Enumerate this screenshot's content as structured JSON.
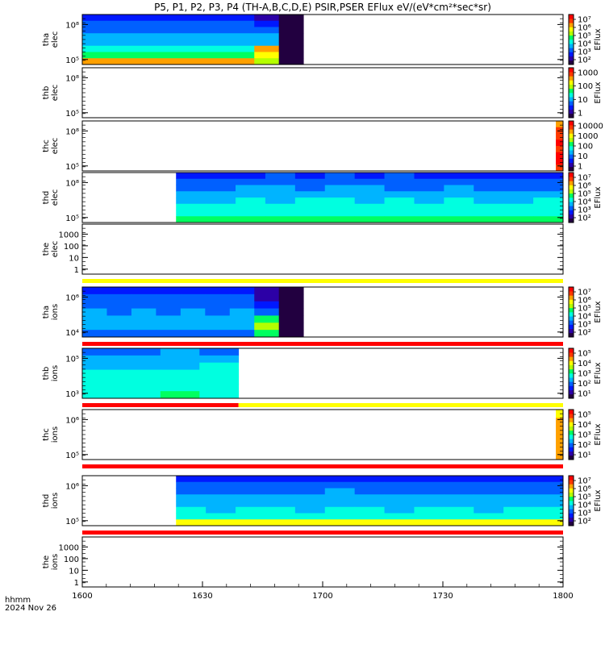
{
  "chart_data": {
    "type": "heatmap",
    "title": "P5, P1, P2, P3, P4 (TH-A,B,C,D,E) PSIR,PSER EFlux eV/(eV*cm²*sec*sr)",
    "x_axis": {
      "range": [
        "1600",
        "1800"
      ],
      "ticks": [
        "1600",
        "1630",
        "1700",
        "1730",
        "1800"
      ],
      "label_lines": [
        "hhmm",
        "2024 Nov 26"
      ]
    },
    "colormap": [
      "#220040",
      "#2c00a6",
      "#0018ff",
      "#0060ff",
      "#00b4ff",
      "#00ffe0",
      "#00ff60",
      "#b4ff00",
      "#ffff00",
      "#ffa000",
      "#ff3800",
      "#ff0000"
    ],
    "panels": [
      {
        "name": "tha elec",
        "ylabel_lines": [
          "tha",
          "elec"
        ],
        "yscale": "log",
        "yticks": [
          "10⁸",
          "10⁵"
        ],
        "colorbar": {
          "label": "EFlux",
          "ticks": [
            "10⁷",
            "10⁶",
            "10⁵",
            "10⁴",
            "10³",
            "10²"
          ]
        },
        "coverage_minutes": [
          0,
          92
        ],
        "flag_bar": "none",
        "grid": [
          [
            2.0,
            2.1,
            2.0,
            2.3,
            2.1,
            2.2,
            2.0,
            1.2,
            0.3
          ],
          [
            2.7,
            2.6,
            2.8,
            2.5,
            2.7,
            2.6,
            2.9,
            2.2,
            0.2
          ],
          [
            3.3,
            3.1,
            3.4,
            3.2,
            3.3,
            3.1,
            3.3,
            3.0,
            0.2
          ],
          [
            3.7,
            3.8,
            3.6,
            3.9,
            3.7,
            3.8,
            3.6,
            3.5,
            0.3
          ],
          [
            4.2,
            4.0,
            4.3,
            4.1,
            4.2,
            4.3,
            4.1,
            4.0,
            0.2
          ],
          [
            4.6,
            4.7,
            4.5,
            4.6,
            4.8,
            4.5,
            4.6,
            8.5,
            0.2
          ],
          [
            5.8,
            5.5,
            5.9,
            5.6,
            5.7,
            5.8,
            5.6,
            8.0,
            0.3
          ],
          [
            9.2,
            9.0,
            9.3,
            9.1,
            9.2,
            9.0,
            9.1,
            6.5,
            0.2
          ]
        ]
      },
      {
        "name": "thb elec",
        "ylabel_lines": [
          "thb",
          "elec"
        ],
        "yscale": "log",
        "yticks": [
          "10⁸",
          "10⁵"
        ],
        "colorbar": {
          "label": "EFlux",
          "ticks": [
            "1000",
            "100",
            "10",
            "1"
          ]
        },
        "coverage_minutes": [
          0,
          0
        ],
        "flag_bar": "none",
        "grid": []
      },
      {
        "name": "thc elec",
        "ylabel_lines": [
          "thc",
          "elec"
        ],
        "yscale": "log",
        "yticks": [
          "10⁸",
          "10⁵"
        ],
        "colorbar": {
          "label": "",
          "ticks": [
            "10000",
            "1000",
            "100",
            "10",
            "1"
          ]
        },
        "coverage_minutes": [
          197,
          200
        ],
        "flag_bar": "none",
        "grid": [
          [
            8.8
          ],
          [
            9.5
          ],
          [
            10.2
          ],
          [
            10.6
          ],
          [
            10.3
          ],
          [
            10.8
          ],
          [
            10.5
          ],
          [
            10.1
          ]
        ]
      },
      {
        "name": "thd elec",
        "ylabel_lines": [
          "thd",
          "elec"
        ],
        "yscale": "log",
        "yticks": [
          "10⁸",
          "10⁵"
        ],
        "colorbar": {
          "label": "EFlux",
          "ticks": [
            "10⁷",
            "10⁶",
            "10⁵",
            "10⁴",
            "10³",
            "10²"
          ]
        },
        "coverage_minutes": [
          39,
          200
        ],
        "flag_bar": "none",
        "grid": [
          [
            2.3,
            2.4,
            2.2,
            2.5,
            2.3,
            2.6,
            2.4,
            2.5,
            2.3,
            2.2,
            2.4,
            2.1,
            2.3
          ],
          [
            2.8,
            2.9,
            3.0,
            2.8,
            3.1,
            2.9,
            3.0,
            2.8,
            2.9,
            3.0,
            2.8,
            2.9,
            2.7
          ],
          [
            3.4,
            3.3,
            3.5,
            3.6,
            3.4,
            3.8,
            3.5,
            3.3,
            3.4,
            3.6,
            3.3,
            3.4,
            3.2
          ],
          [
            4.0,
            4.1,
            3.9,
            4.2,
            4.0,
            4.3,
            4.1,
            4.0,
            4.2,
            3.9,
            4.1,
            4.0,
            3.8
          ],
          [
            4.4,
            4.3,
            4.5,
            4.4,
            4.6,
            4.5,
            4.4,
            4.6,
            4.3,
            4.5,
            4.4,
            4.3,
            4.5
          ],
          [
            4.7,
            4.8,
            4.7,
            4.9,
            4.8,
            4.7,
            4.8,
            4.9,
            4.7,
            4.8,
            4.7,
            4.8,
            4.6
          ],
          [
            5.0,
            5.1,
            5.0,
            5.1,
            5.0,
            5.1,
            5.0,
            5.1,
            5.0,
            5.1,
            5.0,
            5.1,
            5.0
          ],
          [
            6.0,
            6.0,
            6.0,
            6.0,
            6.0,
            6.0,
            6.0,
            6.0,
            6.0,
            6.0,
            6.0,
            6.0,
            6.0
          ]
        ]
      },
      {
        "name": "the elec",
        "ylabel_lines": [
          "the",
          "elec"
        ],
        "yscale": "log",
        "yticks": [
          "1000",
          "100",
          "10",
          "1"
        ],
        "colorbar": null,
        "coverage_minutes": [
          0,
          0
        ],
        "flag_bar": "yellow",
        "grid": []
      },
      {
        "name": "tha ions",
        "ylabel_lines": [
          "tha",
          "ions"
        ],
        "yscale": "log",
        "yticks": [
          "10⁶",
          "10⁴"
        ],
        "colorbar": {
          "label": "EFlux",
          "ticks": [
            "10⁷",
            "10⁶",
            "10⁵",
            "10⁴",
            "10³",
            "10²"
          ]
        },
        "coverage_minutes": [
          0,
          92
        ],
        "flag_bar": "red",
        "grid": [
          [
            2.1,
            2.2,
            2.0,
            2.3,
            2.1,
            2.2,
            2.0,
            0.8,
            0.3
          ],
          [
            2.6,
            2.5,
            2.7,
            2.6,
            2.8,
            2.5,
            2.6,
            1.0,
            0.2
          ],
          [
            3.0,
            3.1,
            2.9,
            3.2,
            3.0,
            3.1,
            3.0,
            1.5,
            0.3
          ],
          [
            3.5,
            3.4,
            3.6,
            3.3,
            3.5,
            3.4,
            3.5,
            2.5,
            0.2
          ],
          [
            3.8,
            3.9,
            3.7,
            3.8,
            3.9,
            3.7,
            3.8,
            6.0,
            0.3
          ],
          [
            4.0,
            4.1,
            4.0,
            4.2,
            4.0,
            4.1,
            4.0,
            6.5,
            0.2
          ],
          [
            2.8,
            2.9,
            3.0,
            2.8,
            2.9,
            3.0,
            2.8,
            5.5,
            0.3
          ]
        ]
      },
      {
        "name": "thb ions",
        "ylabel_lines": [
          "thb",
          "ions"
        ],
        "yscale": "log",
        "yticks": [
          "10⁵",
          "10³"
        ],
        "colorbar": {
          "label": "EFlux",
          "ticks": [
            "10⁵",
            "10⁴",
            "10³",
            "10²",
            "10¹"
          ]
        },
        "coverage_minutes": [
          0,
          65
        ],
        "flag_bar": "red-yellow",
        "grid": [
          [
            3.4,
            3.3,
            3.5,
            3.4
          ],
          [
            3.8,
            3.9,
            3.7,
            3.8
          ],
          [
            4.3,
            4.2,
            4.4,
            4.5
          ],
          [
            4.7,
            4.8,
            4.6,
            4.9
          ],
          [
            5.1,
            5.0,
            5.2,
            5.1
          ],
          [
            5.3,
            5.2,
            5.4,
            5.3
          ],
          [
            5.0,
            5.1,
            6.0,
            5.0
          ]
        ]
      },
      {
        "name": "thc ions",
        "ylabel_lines": [
          "thc",
          "ions"
        ],
        "yscale": "log",
        "yticks": [
          "10⁶",
          "10⁵"
        ],
        "colorbar": {
          "label": "EFlux",
          "ticks": [
            "10⁵",
            "10⁴",
            "10³",
            "10²",
            "10¹"
          ]
        },
        "coverage_minutes": [
          197,
          200
        ],
        "flag_bar": "red",
        "grid": [
          [
            7.5
          ],
          [
            8.5
          ],
          [
            8.8
          ],
          [
            8.7
          ],
          [
            8.9
          ],
          [
            9.0
          ]
        ]
      },
      {
        "name": "thd ions",
        "ylabel_lines": [
          "thd",
          "ions"
        ],
        "yscale": "log",
        "yticks": [
          "10⁶",
          "10⁵"
        ],
        "colorbar": {
          "label": "EFlux",
          "ticks": [
            "10⁷",
            "10⁶",
            "10⁵",
            "10⁴",
            "10³",
            "10²"
          ]
        },
        "coverage_minutes": [
          39,
          200
        ],
        "flag_bar": "red",
        "grid": [
          [
            2.2,
            2.3,
            2.1,
            2.4,
            2.2,
            2.3,
            2.1,
            2.4,
            2.2,
            2.3,
            2.1,
            2.2,
            2.3
          ],
          [
            2.7,
            2.6,
            2.8,
            2.5,
            2.7,
            2.9,
            2.6,
            2.8,
            2.7,
            2.6,
            2.8,
            2.7,
            2.6
          ],
          [
            3.2,
            3.3,
            3.1,
            3.4,
            3.2,
            3.5,
            3.3,
            3.2,
            3.4,
            3.1,
            3.3,
            3.2,
            3.4
          ],
          [
            3.7,
            3.6,
            3.8,
            3.6,
            3.9,
            3.7,
            3.8,
            3.6,
            3.7,
            3.9,
            3.6,
            3.8,
            3.7
          ],
          [
            4.1,
            4.2,
            4.0,
            4.3,
            4.1,
            4.2,
            4.1,
            4.3,
            4.0,
            4.2,
            4.1,
            4.2,
            4.0
          ],
          [
            4.5,
            4.4,
            4.6,
            4.5,
            4.4,
            4.6,
            4.5,
            4.4,
            4.6,
            4.5,
            4.4,
            4.5,
            4.6
          ],
          [
            4.8,
            4.9,
            4.8,
            4.9,
            4.8,
            4.9,
            4.8,
            4.9,
            4.8,
            4.9,
            4.8,
            4.9,
            4.8
          ],
          [
            7.5,
            7.5,
            7.5,
            7.5,
            7.5,
            7.5,
            7.5,
            7.5,
            7.5,
            7.5,
            7.5,
            7.5,
            7.5
          ]
        ]
      },
      {
        "name": "the ions",
        "ylabel_lines": [
          "the",
          "ions"
        ],
        "yscale": "log",
        "yticks": [
          "1000",
          "100",
          "10",
          "1"
        ],
        "colorbar": null,
        "coverage_minutes": [
          0,
          0
        ],
        "flag_bar": "none",
        "grid": []
      }
    ]
  }
}
